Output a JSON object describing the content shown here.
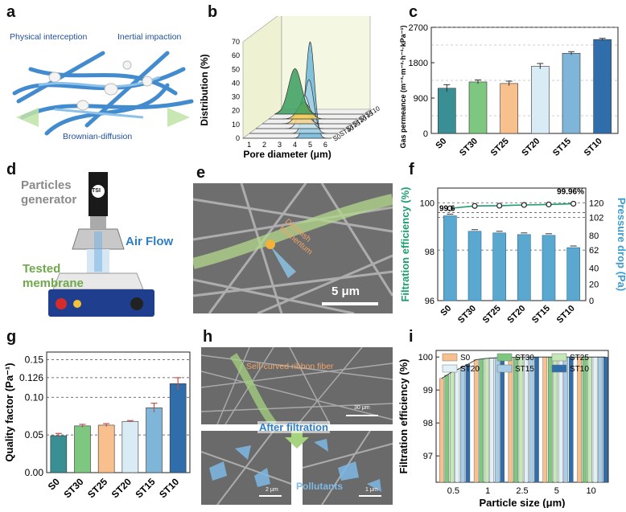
{
  "panel_labels": {
    "a": "a",
    "b": "b",
    "c": "c",
    "d": "d",
    "e": "e",
    "f": "f",
    "g": "g",
    "h": "h",
    "i": "i"
  },
  "panel_a": {
    "physical": "Physical interception",
    "inertial": "Inertial impaction",
    "brownian": "Brownian-diffusion"
  },
  "panel_d": {
    "generator": "Particles\ngenerator",
    "airflow": "Air Flow",
    "tested": "Tested\nmembrane",
    "logo": "TSI"
  },
  "panel_e": {
    "scalebar": "5 μm",
    "annotation": "Diminish\nMomentum"
  },
  "panel_h": {
    "ribbon": "Self-curved ribbon fiber",
    "after": "After filtration",
    "pollutants": "Pollutants",
    "scale_top": "30 μm",
    "scale_left": "2 μm",
    "scale_right": "1 μm"
  },
  "colors": {
    "S0": "#3a8f94",
    "ST30": "#7ec780",
    "ST25": "#f7c08c",
    "ST20": "#d9ecf5",
    "ST15": "#7fb5d9",
    "ST10": "#2f6eaa",
    "green_line": "#1a9e6e",
    "bar_f": "#5aa7cf"
  },
  "chart_data": [
    {
      "id": "b",
      "type": "area",
      "xlabel": "Pore diameter (μm)",
      "ylabel": "Distribution (%)",
      "x_ticks": [
        "1",
        "2",
        "3",
        "4",
        "5",
        "6"
      ],
      "y_ticks": [
        "0",
        "10",
        "20",
        "30",
        "40",
        "50",
        "60",
        "70"
      ],
      "series_labels": [
        "ST10",
        "ST15",
        "ST20",
        "ST25",
        "ST30",
        "S0"
      ],
      "series": [
        {
          "name": "S0",
          "peak_x": 1.9,
          "peak_y": 33
        },
        {
          "name": "ST30",
          "peak_x": 2.9,
          "peak_y": 12
        },
        {
          "name": "ST25",
          "peak_x": 3.2,
          "peak_y": 14
        },
        {
          "name": "ST20",
          "peak_x": 3.8,
          "peak_y": 24
        },
        {
          "name": "ST15",
          "peak_x": 4.5,
          "peak_y": 39
        },
        {
          "name": "ST10",
          "peak_x": 5.0,
          "peak_y": 70
        }
      ]
    },
    {
      "id": "c",
      "type": "bar",
      "categories": [
        "S0",
        "ST30",
        "ST25",
        "ST20",
        "ST15",
        "ST10"
      ],
      "values": [
        1150,
        1310,
        1270,
        1710,
        2040,
        2390
      ],
      "errors": [
        90,
        50,
        60,
        70,
        40,
        30
      ],
      "ylabel": "Gas permeance (m⁻³·m⁻²·h⁻¹·kPa⁻¹)",
      "ylim": [
        0,
        2700
      ],
      "y_ticks": [
        "0",
        "900",
        "1800",
        "2700"
      ]
    },
    {
      "id": "f",
      "type": "bar",
      "categories": [
        "S0",
        "ST30",
        "ST25",
        "ST20",
        "ST15",
        "ST10"
      ],
      "pressure_values": [
        104,
        85,
        83,
        81,
        80,
        65
      ],
      "efficiency_values": [
        99.77,
        99.87,
        99.88,
        99.91,
        99.93,
        99.96
      ],
      "ylabel_left": "Filtration efficiency (%)",
      "ylabel_right": "Pressure drop (Pa)",
      "left_ticks": [
        "96",
        "98",
        "100"
      ],
      "right_ticks": [
        "0",
        "20",
        "40",
        "62",
        "80",
        "102",
        "120"
      ],
      "ref_lines_left": [
        99.6
      ],
      "ref_lines_right": [
        62,
        102
      ],
      "annotation_top": "99.96%",
      "annotation_ref": "99.6",
      "ylim_left": [
        96,
        100.6
      ],
      "ylim_right": [
        0,
        138
      ]
    },
    {
      "id": "g",
      "type": "bar",
      "categories": [
        "S0",
        "ST30",
        "ST25",
        "ST20",
        "ST15",
        "ST10"
      ],
      "values": [
        0.049,
        0.062,
        0.063,
        0.068,
        0.086,
        0.118
      ],
      "errors": [
        0.003,
        0.002,
        0.002,
        0.001,
        0.006,
        0.008
      ],
      "ylabel": "Quality factor (Pa⁻¹)",
      "y_ticks": [
        "0.00",
        "0.05",
        "0.10",
        "0.126",
        "0.15"
      ],
      "ref_lines": [
        0.05,
        0.1,
        0.126,
        0.15
      ],
      "ylim": [
        0,
        0.16
      ]
    },
    {
      "id": "i",
      "type": "bar",
      "categories": [
        "0.5",
        "1",
        "2.5",
        "5",
        "10"
      ],
      "series_names": [
        "S0",
        "ST30",
        "ST25",
        "ST20",
        "ST15",
        "ST10"
      ],
      "values": [
        [
          99.35,
          99.92,
          99.99,
          100,
          100
        ],
        [
          99.45,
          99.94,
          99.99,
          100,
          100
        ],
        [
          99.55,
          99.96,
          100,
          100,
          100
        ],
        [
          99.62,
          99.97,
          100,
          100,
          100
        ],
        [
          99.7,
          99.98,
          100,
          100,
          100
        ],
        [
          99.78,
          99.99,
          100,
          100,
          100
        ]
      ],
      "xlabel": "Particle size (μm)",
      "ylabel": "Filtration efficiency (%)",
      "y_ticks": [
        "97",
        "98",
        "99",
        "100"
      ],
      "ylim": [
        96.2,
        100.2
      ]
    }
  ]
}
